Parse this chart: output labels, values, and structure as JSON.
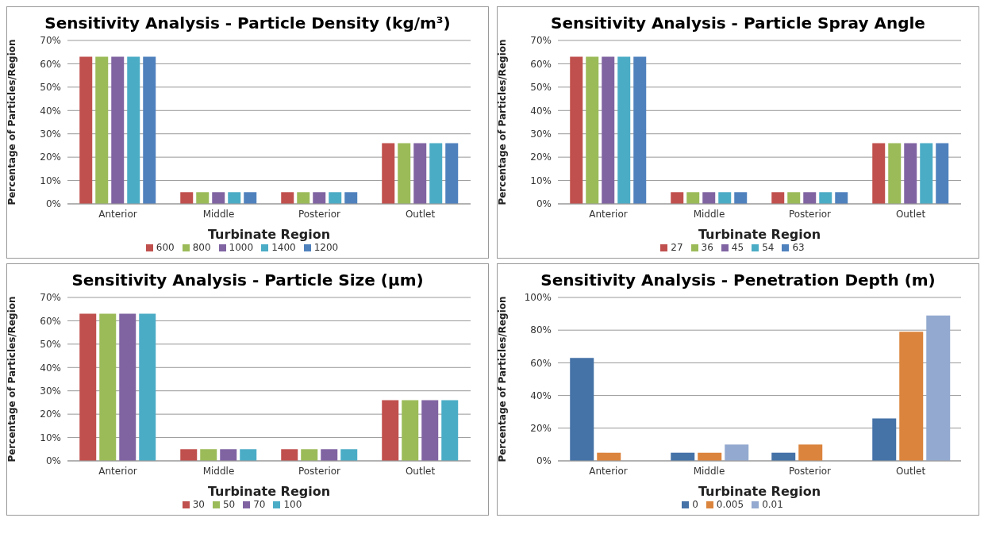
{
  "chart_data": [
    {
      "type": "bar",
      "title": "Sensitivity Analysis - Particle Density (kg/m³)",
      "xlabel": "Turbinate Region",
      "ylabel": "Percentage of Particles/Region",
      "categories": [
        "Anterior",
        "Middle",
        "Posterior",
        "Outlet"
      ],
      "series": [
        {
          "name": "600",
          "color": "#c0504d",
          "values": [
            63,
            5,
            5,
            26
          ]
        },
        {
          "name": "800",
          "color": "#9bbb59",
          "values": [
            63,
            5,
            5,
            26
          ]
        },
        {
          "name": "1000",
          "color": "#8064a2",
          "values": [
            63,
            5,
            5,
            26
          ]
        },
        {
          "name": "1400",
          "color": "#4bacc6",
          "values": [
            63,
            5,
            5,
            26
          ]
        },
        {
          "name": "1200",
          "color": "#4f81bd",
          "values": [
            63,
            5,
            5,
            26
          ]
        }
      ],
      "ylim": [
        0,
        70
      ],
      "yticks": [
        {
          "value": 0,
          "label": "0%"
        },
        {
          "value": 10,
          "label": "10%"
        },
        {
          "value": 20,
          "label": "20%"
        },
        {
          "value": 30,
          "label": "30%"
        },
        {
          "value": 40,
          "label": "40%"
        },
        {
          "value": 50,
          "label": "50%"
        },
        {
          "value": 60,
          "label": "60%"
        },
        {
          "value": 70,
          "label": "70%"
        }
      ],
      "grid": "y",
      "legend": "bottom"
    },
    {
      "type": "bar",
      "title": "Sensitivity Analysis - Particle Spray Angle",
      "xlabel": "Turbinate Region",
      "ylabel": "Percentage of Particles/Region",
      "categories": [
        "Anterior",
        "Middle",
        "Posterior",
        "Outlet"
      ],
      "series": [
        {
          "name": "27",
          "color": "#c0504d",
          "values": [
            63,
            5,
            5,
            26
          ]
        },
        {
          "name": "36",
          "color": "#9bbb59",
          "values": [
            63,
            5,
            5,
            26
          ]
        },
        {
          "name": "45",
          "color": "#8064a2",
          "values": [
            63,
            5,
            5,
            26
          ]
        },
        {
          "name": "54",
          "color": "#4bacc6",
          "values": [
            63,
            5,
            5,
            26
          ]
        },
        {
          "name": "63",
          "color": "#4f81bd",
          "values": [
            63,
            5,
            5,
            26
          ]
        }
      ],
      "ylim": [
        0,
        70
      ],
      "yticks": [
        {
          "value": 0,
          "label": "0%"
        },
        {
          "value": 10,
          "label": "10%"
        },
        {
          "value": 20,
          "label": "20%"
        },
        {
          "value": 30,
          "label": "30%"
        },
        {
          "value": 40,
          "label": "40%"
        },
        {
          "value": 50,
          "label": "50%"
        },
        {
          "value": 60,
          "label": "60%"
        },
        {
          "value": 70,
          "label": "70%"
        }
      ],
      "grid": "y",
      "legend": "bottom"
    },
    {
      "type": "bar",
      "title": "Sensitivity Analysis - Particle Size (µm)",
      "xlabel": "Turbinate Region",
      "ylabel": "Percentage of Particles/Region",
      "categories": [
        "Anterior",
        "Middle",
        "Posterior",
        "Outlet"
      ],
      "series": [
        {
          "name": "30",
          "color": "#c0504d",
          "values": [
            63,
            5,
            5,
            26
          ]
        },
        {
          "name": "50",
          "color": "#9bbb59",
          "values": [
            63,
            5,
            5,
            26
          ]
        },
        {
          "name": "70",
          "color": "#8064a2",
          "values": [
            63,
            5,
            5,
            26
          ]
        },
        {
          "name": "100",
          "color": "#4bacc6",
          "values": [
            63,
            5,
            5,
            26
          ]
        }
      ],
      "ylim": [
        0,
        70
      ],
      "yticks": [
        {
          "value": 0,
          "label": "0%"
        },
        {
          "value": 10,
          "label": "10%"
        },
        {
          "value": 20,
          "label": "20%"
        },
        {
          "value": 30,
          "label": "30%"
        },
        {
          "value": 40,
          "label": "40%"
        },
        {
          "value": 50,
          "label": "50%"
        },
        {
          "value": 60,
          "label": "60%"
        },
        {
          "value": 70,
          "label": "70%"
        }
      ],
      "grid": "y",
      "legend": "bottom"
    },
    {
      "type": "bar",
      "title": "Sensitivity Analysis - Penetration Depth (m)",
      "xlabel": "Turbinate Region",
      "ylabel": "Percentage of Particles/Region",
      "categories": [
        "Anterior",
        "Middle",
        "Posterior",
        "Outlet"
      ],
      "series": [
        {
          "name": "0",
          "color": "#4572a7",
          "values": [
            63,
            5,
            5,
            26
          ]
        },
        {
          "name": "0.005",
          "color": "#db843d",
          "values": [
            5,
            5,
            10,
            79
          ]
        },
        {
          "name": "0.01",
          "color": "#93a9cf",
          "values": [
            0,
            10,
            0,
            89
          ]
        }
      ],
      "ylim": [
        0,
        100
      ],
      "yticks": [
        {
          "value": 0,
          "label": "0%"
        },
        {
          "value": 20,
          "label": "20%"
        },
        {
          "value": 40,
          "label": "40%"
        },
        {
          "value": 60,
          "label": "60%"
        },
        {
          "value": 80,
          "label": "80%"
        },
        {
          "value": 100,
          "label": "100%"
        }
      ],
      "grid": "y",
      "legend": "bottom"
    }
  ]
}
